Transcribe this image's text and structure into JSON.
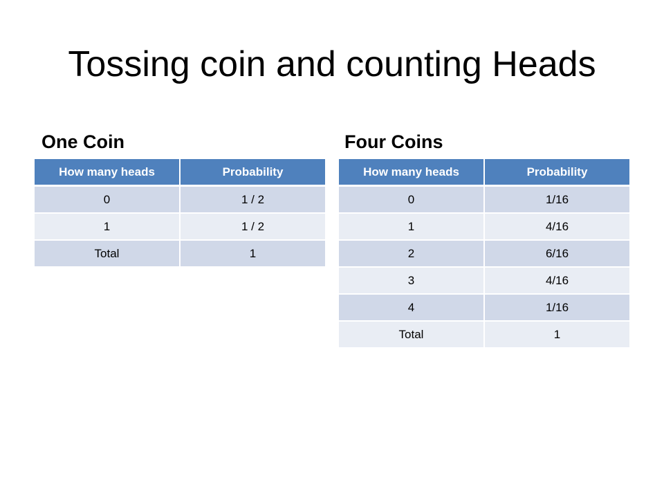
{
  "slide": {
    "title": "Tossing coin and counting Heads"
  },
  "one_coin": {
    "heading": "One Coin",
    "columns": [
      "How many heads",
      "Probability"
    ],
    "rows": [
      [
        "0",
        "1 / 2"
      ],
      [
        "1",
        "1 / 2"
      ],
      [
        "Total",
        "1"
      ]
    ]
  },
  "four_coins": {
    "heading": "Four Coins",
    "columns": [
      "How many heads",
      "Probability"
    ],
    "rows": [
      [
        "0",
        "1/16"
      ],
      [
        "1",
        "4/16"
      ],
      [
        "2",
        "6/16"
      ],
      [
        "3",
        "4/16"
      ],
      [
        "4",
        "1/16"
      ],
      [
        "Total",
        "1"
      ]
    ]
  },
  "colors": {
    "header": "#4f81bd",
    "row_odd": "#d0d8e8",
    "row_even": "#e9edf4"
  }
}
